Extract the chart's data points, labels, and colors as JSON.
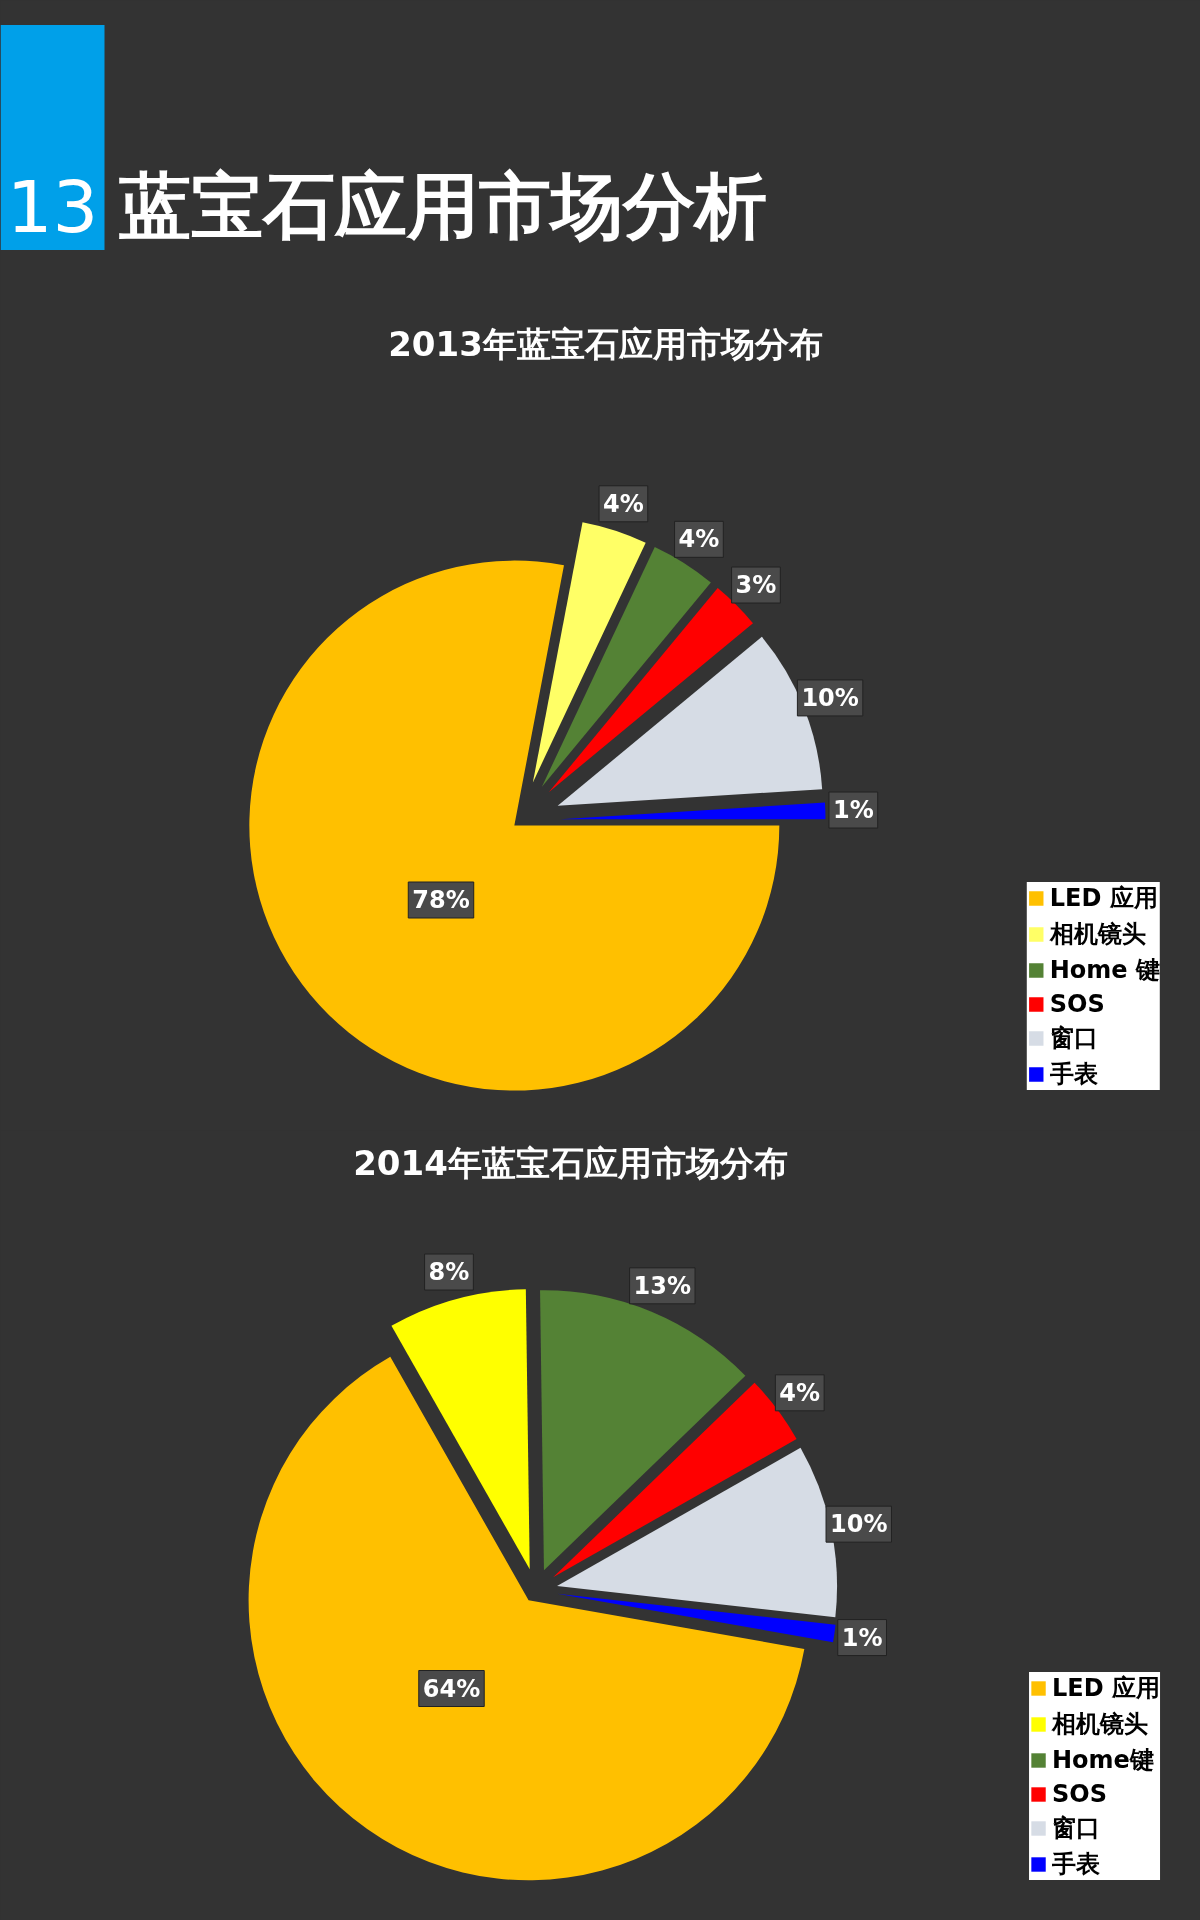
{
  "chart_data": [
    {
      "type": "pie",
      "title": "13 蓝宝石应用市场分析",
      "subtitle": "2013年蓝宝石应用市场分布",
      "categories": [
        "LED 应用",
        "相机镜头",
        "Home 键",
        "SOS",
        "窗口",
        "手表"
      ],
      "values": [
        78,
        4,
        4,
        3,
        10,
        1
      ],
      "value_labels": [
        "78%",
        "4%",
        "4%",
        "3%",
        "10%",
        "1%"
      ],
      "colors": [
        "#ffc000",
        "#ffff66",
        "#548235",
        "#ff0000",
        "#d6dce5",
        "#0000ff"
      ],
      "legend": "bottom right"
    },
    {
      "type": "pie",
      "title": "2014年蓝宝石应用市场分布",
      "categories": [
        "LED 应用",
        "相机镜头",
        "Home键",
        "SOS",
        "窗口",
        "手表"
      ],
      "values": [
        64,
        8,
        13,
        4,
        10,
        1
      ],
      "value_labels": [
        "64%",
        "8%",
        "13%",
        "4%",
        "10%",
        "1%"
      ],
      "colors": [
        "#ffc000",
        "#ffff00",
        "#548235",
        "#ff0000",
        "#d6dce5",
        "#0000ff"
      ],
      "legend": "bottom right"
    }
  ]
}
